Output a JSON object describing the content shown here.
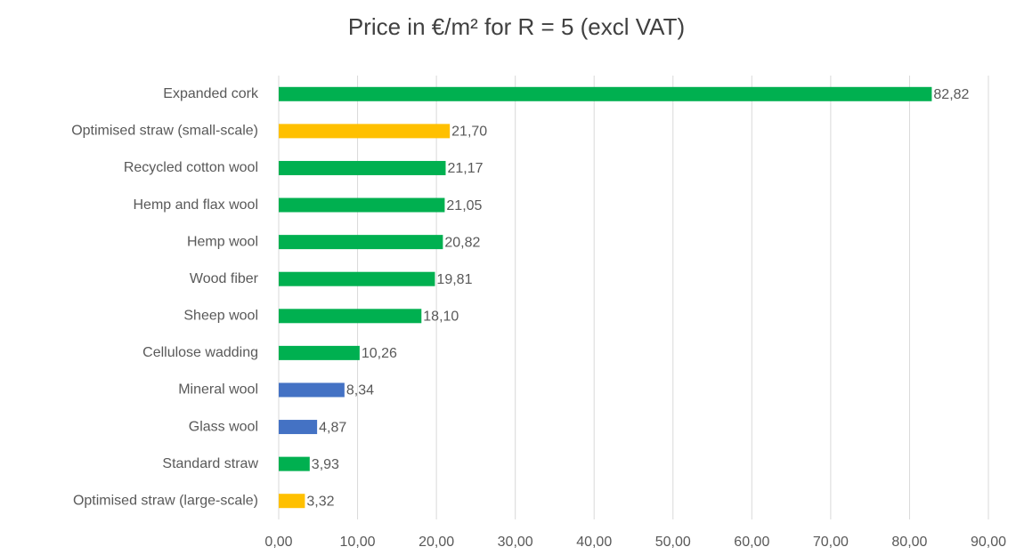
{
  "chart_data": {
    "type": "barh",
    "title": "Price in €/m² for R = 5 (excl VAT)",
    "categories": [
      "Expanded cork",
      "Optimised straw (small-scale)",
      "Recycled cotton wool",
      "Hemp and flax wool",
      "Hemp wool",
      "Wood fiber",
      "Sheep wool",
      "Cellulose wadding",
      "Mineral wool",
      "Glass wool",
      "Standard straw",
      "Optimised straw (large-scale)"
    ],
    "values": [
      82.82,
      21.7,
      21.17,
      21.05,
      20.82,
      19.81,
      18.1,
      10.26,
      8.34,
      4.87,
      3.93,
      3.32
    ],
    "value_labels": [
      "82,82",
      "21,70",
      "21,17",
      "21,05",
      "20,82",
      "19,81",
      "18,10",
      "10,26",
      "8,34",
      "4,87",
      "3,93",
      "3,32"
    ],
    "colors": [
      "#00b050",
      "#ffc000",
      "#00b050",
      "#00b050",
      "#00b050",
      "#00b050",
      "#00b050",
      "#00b050",
      "#4472c4",
      "#4472c4",
      "#00b050",
      "#ffc000"
    ],
    "xlim": [
      0,
      90
    ],
    "xticks": [
      {
        "value": 0,
        "label": "0,00"
      },
      {
        "value": 10,
        "label": "10,00"
      },
      {
        "value": 20,
        "label": "20,00"
      },
      {
        "value": 30,
        "label": "30,00"
      },
      {
        "value": 40,
        "label": "40,00"
      },
      {
        "value": 50,
        "label": "50,00"
      },
      {
        "value": 60,
        "label": "60,00"
      },
      {
        "value": 70,
        "label": "70,00"
      },
      {
        "value": 80,
        "label": "80,00"
      },
      {
        "value": 90,
        "label": "90,00"
      }
    ],
    "grid": true
  }
}
